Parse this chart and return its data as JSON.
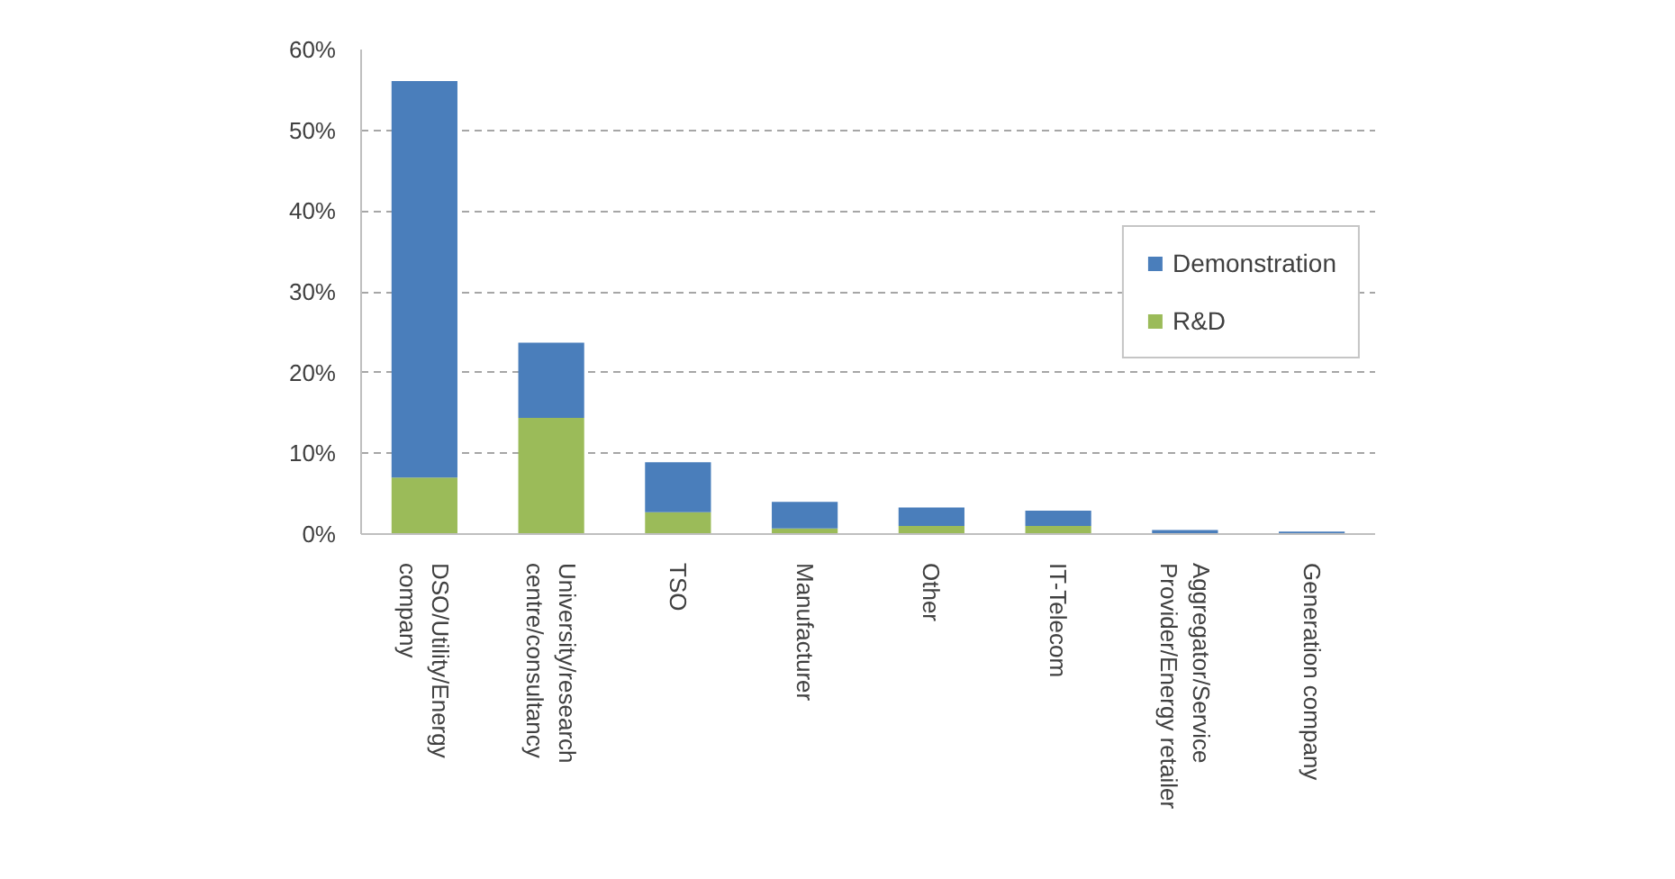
{
  "chart_data": {
    "type": "bar",
    "stacked": true,
    "categories": [
      "DSO/Utility/Energy company",
      "University/research centre/consultancy",
      "TSO",
      "Manufacturer",
      "Other",
      "IT-Telecom",
      "Aggregator/Service Provider/Energy retailer",
      "Generation company"
    ],
    "series": [
      {
        "name": "R&D",
        "color": "#9bbb59",
        "values": [
          7.0,
          14.4,
          2.7,
          0.7,
          1.0,
          1.0,
          0,
          0
        ]
      },
      {
        "name": "Demonstration",
        "color": "#4a7ebb",
        "values": [
          49.1,
          9.3,
          6.2,
          3.3,
          2.3,
          1.9,
          0.5,
          0.3
        ]
      }
    ],
    "ylim": [
      0,
      60
    ],
    "yticks": [
      {
        "value": 0,
        "label": "0%"
      },
      {
        "value": 10,
        "label": "10%"
      },
      {
        "value": 20,
        "label": "20%"
      },
      {
        "value": 30,
        "label": "30%"
      },
      {
        "value": 40,
        "label": "40%"
      },
      {
        "value": 50,
        "label": "50%"
      },
      {
        "value": 60,
        "label": "60%"
      }
    ],
    "grid": "y",
    "legend": "right"
  }
}
